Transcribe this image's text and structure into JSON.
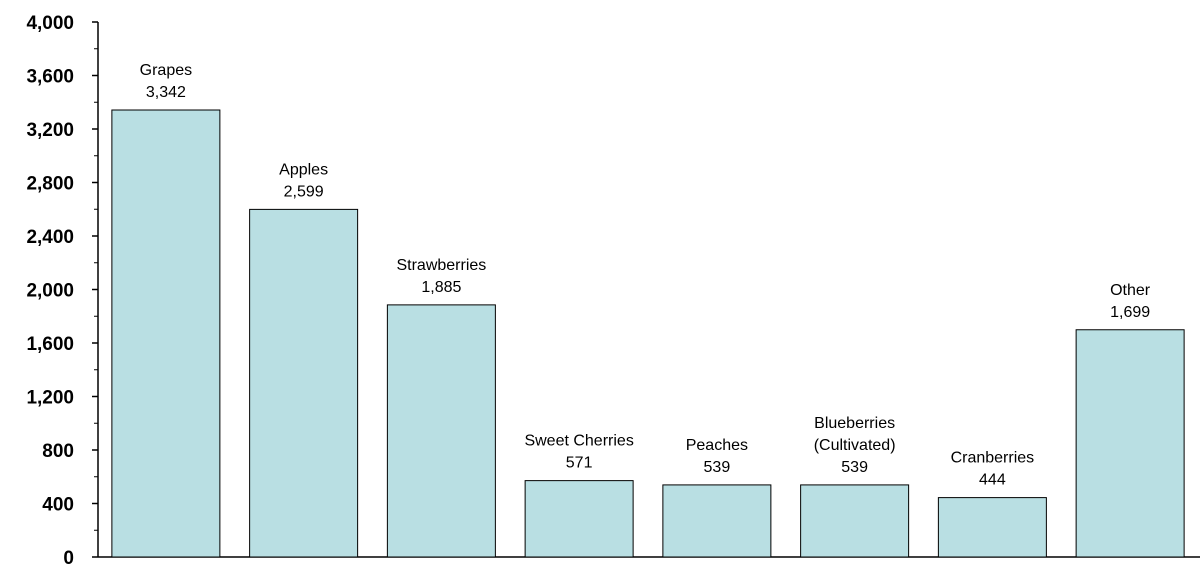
{
  "chart_data": {
    "type": "bar",
    "title": "",
    "xlabel": "",
    "ylabel": "",
    "ylim": [
      0,
      4000
    ],
    "y_ticks": [
      "0",
      "400",
      "800",
      "1,200",
      "1,600",
      "2,000",
      "2,400",
      "2,800",
      "3,200",
      "3,600",
      "4,000"
    ],
    "y_tick_values": [
      0,
      400,
      800,
      1200,
      1600,
      2000,
      2400,
      2800,
      3200,
      3600,
      4000
    ],
    "grid": false,
    "bar_color": "#b9dfe3",
    "bars": [
      {
        "label_lines": [
          "Grapes"
        ],
        "value": 3342,
        "value_label": "3,342"
      },
      {
        "label_lines": [
          "Apples"
        ],
        "value": 2599,
        "value_label": "2,599"
      },
      {
        "label_lines": [
          "Strawberries"
        ],
        "value": 1885,
        "value_label": "1,885"
      },
      {
        "label_lines": [
          "Sweet Cherries"
        ],
        "value": 571,
        "value_label": "571"
      },
      {
        "label_lines": [
          "Peaches"
        ],
        "value": 539,
        "value_label": "539"
      },
      {
        "label_lines": [
          "Blueberries",
          "(Cultivated)"
        ],
        "value": 539,
        "value_label": "539"
      },
      {
        "label_lines": [
          "Cranberries"
        ],
        "value": 444,
        "value_label": "444"
      },
      {
        "label_lines": [
          "Other"
        ],
        "value": 1699,
        "value_label": "1,699"
      }
    ]
  }
}
